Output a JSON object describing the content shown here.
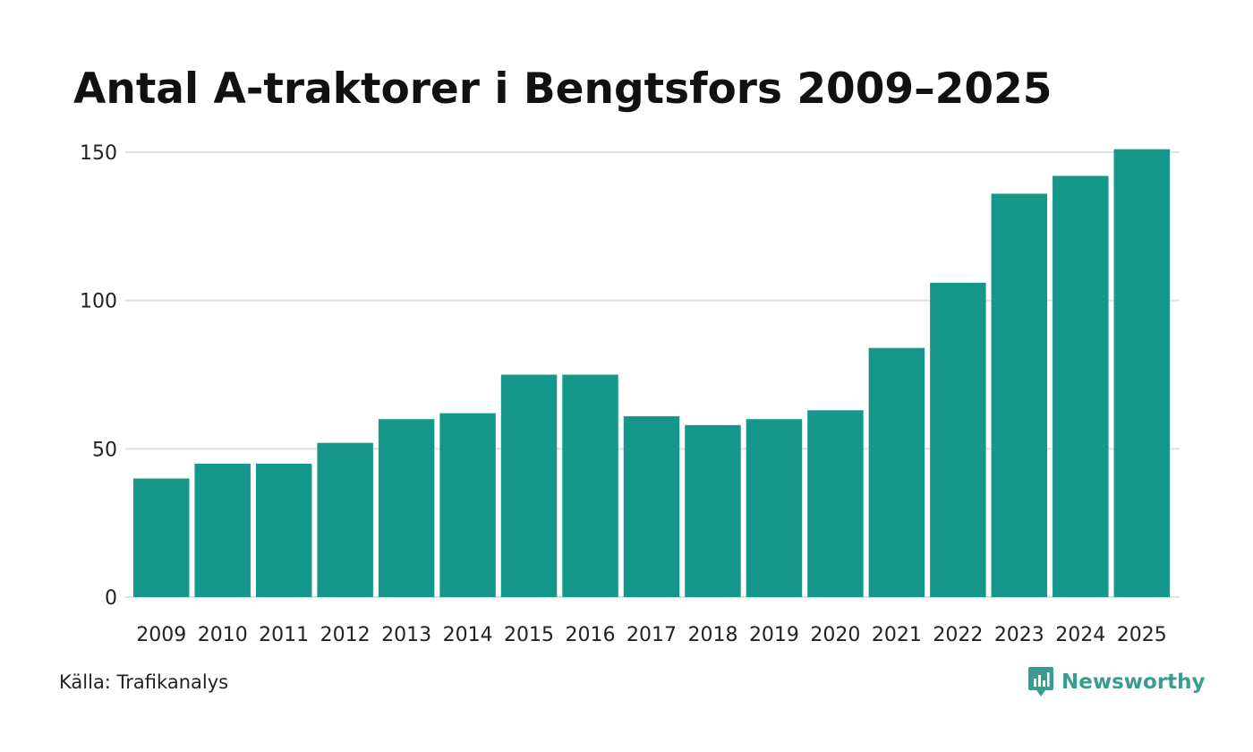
{
  "chart_data": {
    "type": "bar",
    "title": "Antal A-traktorer i Bengtsfors 2009–2025",
    "xlabel": "",
    "ylabel": "",
    "categories": [
      "2009",
      "2010",
      "2011",
      "2012",
      "2013",
      "2014",
      "2015",
      "2016",
      "2017",
      "2018",
      "2019",
      "2020",
      "2021",
      "2022",
      "2023",
      "2024",
      "2025"
    ],
    "values": [
      40,
      45,
      45,
      52,
      60,
      62,
      75,
      75,
      61,
      58,
      60,
      63,
      84,
      106,
      136,
      142,
      151
    ],
    "ylim": [
      0,
      150
    ],
    "yticks": [
      0,
      50,
      100,
      150
    ],
    "grid": true,
    "legend": "none",
    "bar_color": "#159789",
    "grid_color": "#e0e0e0"
  },
  "footer": {
    "source": "Källa: Trafikanalys",
    "brand": "Newsworthy",
    "brand_color": "#3a9c8f"
  }
}
